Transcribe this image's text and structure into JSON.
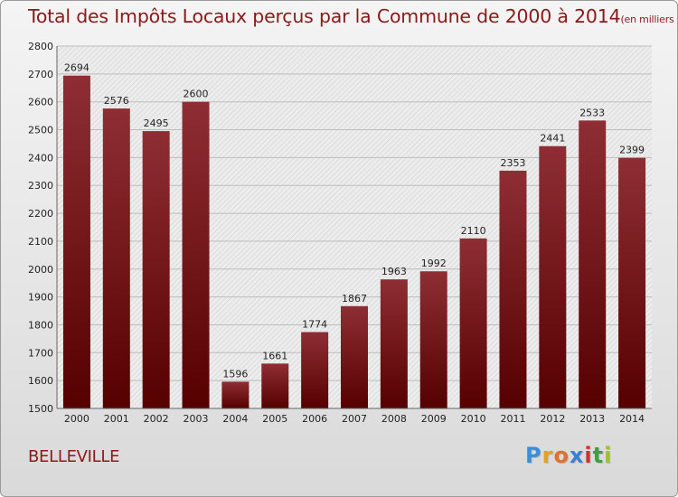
{
  "header": {
    "title": "Total des Impôts Locaux perçus par la Commune de 2000 à 2014",
    "unit": "(en milliers d'€)"
  },
  "commune": "BELLEVILLE",
  "logo": {
    "letters": [
      "P",
      "r",
      "o",
      "x",
      "i",
      "t",
      "i"
    ],
    "colors": [
      "#3a8fd8",
      "#e8a020",
      "#e07030",
      "#3a7fd0",
      "#d03030",
      "#3aa040",
      "#a0c030"
    ]
  },
  "colors": {
    "bar_top": "#8e2e34",
    "bar_bottom": "#560000",
    "title": "#8a1a1a"
  },
  "chart_data": {
    "type": "bar",
    "categories": [
      "2000",
      "2001",
      "2002",
      "2003",
      "2004",
      "2005",
      "2006",
      "2007",
      "2008",
      "2009",
      "2010",
      "2011",
      "2012",
      "2013",
      "2014"
    ],
    "values": [
      2694,
      2576,
      2495,
      2600,
      1596,
      1661,
      1774,
      1867,
      1963,
      1992,
      2110,
      2353,
      2441,
      2533,
      2399
    ],
    "ylim": [
      1500,
      2800
    ],
    "yticks": [
      1500,
      1600,
      1700,
      1800,
      1900,
      2000,
      2100,
      2200,
      2300,
      2400,
      2500,
      2600,
      2700,
      2800
    ],
    "grid": true,
    "title": "Total des Impôts Locaux perçus par la Commune de 2000 à 2014",
    "xlabel": "",
    "ylabel": ""
  }
}
